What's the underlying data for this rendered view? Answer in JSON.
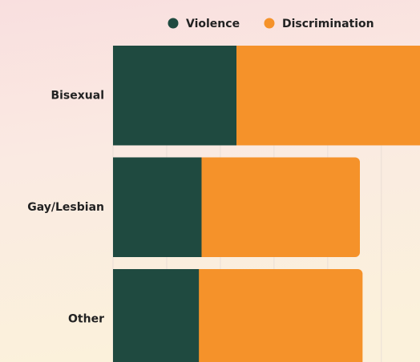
{
  "chart_data": {
    "type": "stacked-horizontal-bar",
    "categories": [
      "Bisexual",
      "Gay/Lesbian",
      "Other"
    ],
    "series": [
      {
        "name": "Violence",
        "color": "#1f4a40",
        "values": [
          23,
          16.5,
          16
        ]
      },
      {
        "name": "Discrimination",
        "color": "#f5922a",
        "values": [
          36,
          29.5,
          30.5
        ]
      }
    ],
    "xlim": [
      0,
      57.2
    ],
    "xticks": [
      0,
      10,
      20,
      30,
      40,
      50
    ],
    "grid": true,
    "legend": "top"
  }
}
